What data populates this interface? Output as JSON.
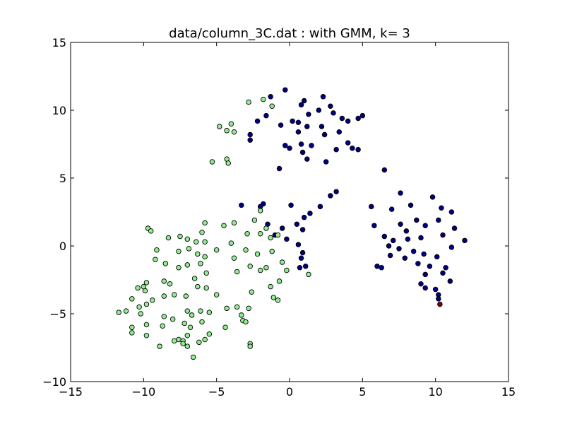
{
  "chart_data": {
    "type": "scatter",
    "title": "data/column_3C.dat : with GMM, k= 3",
    "xlabel": "",
    "ylabel": "",
    "xlim": [
      -15,
      15
    ],
    "ylim": [
      -10,
      15
    ],
    "x_ticks": [
      "−15",
      "−10",
      "−5",
      "0",
      "5",
      "10",
      "15"
    ],
    "y_ticks": [
      "−10",
      "−5",
      "0",
      "5",
      "10",
      "15"
    ],
    "x_tick_values": [
      -15,
      -10,
      -5,
      0,
      5,
      10,
      15
    ],
    "y_tick_values": [
      -10,
      -5,
      0,
      5,
      10,
      15
    ],
    "grid": false,
    "legend": "none",
    "series": [
      {
        "color": "#000080",
        "points": [
          [
            -1.3,
            11.0
          ],
          [
            -0.3,
            11.5
          ],
          [
            0.8,
            10.4
          ],
          [
            1.0,
            10.7
          ],
          [
            2.3,
            11.0
          ],
          [
            2.8,
            10.3
          ],
          [
            3.6,
            9.4
          ],
          [
            0.6,
            9.1
          ],
          [
            0.2,
            9.2
          ],
          [
            1.3,
            9.7
          ],
          [
            2.0,
            10.0
          ],
          [
            3.0,
            9.8
          ],
          [
            4.0,
            9.2
          ],
          [
            5.0,
            9.6
          ],
          [
            4.7,
            9.4
          ],
          [
            -2.2,
            9.2
          ],
          [
            -1.6,
            9.6
          ],
          [
            -0.6,
            8.9
          ],
          [
            0.6,
            8.4
          ],
          [
            1.2,
            8.8
          ],
          [
            2.2,
            8.8
          ],
          [
            3.4,
            8.4
          ],
          [
            -2.7,
            8.2
          ],
          [
            -2.7,
            7.8
          ],
          [
            -0.3,
            7.4
          ],
          [
            0.0,
            7.2
          ],
          [
            0.8,
            7.5
          ],
          [
            1.5,
            7.4
          ],
          [
            2.4,
            8.2
          ],
          [
            3.2,
            7.1
          ],
          [
            4.0,
            7.6
          ],
          [
            4.3,
            7.2
          ],
          [
            4.7,
            7.1
          ],
          [
            0.9,
            6.9
          ],
          [
            1.2,
            6.4
          ],
          [
            2.5,
            6.2
          ],
          [
            -0.7,
            5.7
          ],
          [
            6.5,
            5.6
          ],
          [
            3.2,
            4.0
          ],
          [
            2.8,
            3.7
          ],
          [
            2.1,
            2.9
          ],
          [
            1.4,
            2.4
          ],
          [
            1.0,
            2.1
          ],
          [
            0.1,
            3.0
          ],
          [
            -1.8,
            3.1
          ],
          [
            -2.0,
            2.9
          ],
          [
            -3.3,
            3.0
          ],
          [
            0.5,
            1.6
          ],
          [
            0.9,
            1.2
          ],
          [
            -1.5,
            1.6
          ],
          [
            -0.5,
            1.3
          ],
          [
            -1.0,
            0.8
          ],
          [
            -0.2,
            0.5
          ],
          [
            0.6,
            0.1
          ],
          [
            0.9,
            -0.5
          ],
          [
            0.8,
            -0.9
          ],
          [
            1.1,
            -1.5
          ],
          [
            0.7,
            -1.6
          ],
          [
            5.6,
            2.9
          ],
          [
            7.0,
            2.7
          ],
          [
            7.6,
            3.9
          ],
          [
            8.3,
            3.0
          ],
          [
            9.8,
            3.6
          ],
          [
            10.4,
            2.8
          ],
          [
            11.1,
            2.5
          ],
          [
            8.7,
            1.9
          ],
          [
            5.8,
            1.5
          ],
          [
            7.6,
            1.6
          ],
          [
            8.0,
            1.1
          ],
          [
            9.3,
            1.5
          ],
          [
            10.2,
            1.9
          ],
          [
            11.3,
            1.3
          ],
          [
            6.5,
            0.7
          ],
          [
            7.1,
            0.4
          ],
          [
            8.1,
            0.5
          ],
          [
            9.0,
            0.6
          ],
          [
            10.5,
            0.8
          ],
          [
            11.1,
            -0.1
          ],
          [
            12.0,
            0.4
          ],
          [
            6.8,
            0.0
          ],
          [
            7.5,
            -0.2
          ],
          [
            8.5,
            -0.4
          ],
          [
            9.2,
            -0.6
          ],
          [
            10.1,
            -0.8
          ],
          [
            6.9,
            -0.7
          ],
          [
            7.9,
            -0.9
          ],
          [
            8.8,
            -1.3
          ],
          [
            9.6,
            -1.5
          ],
          [
            10.7,
            -1.6
          ],
          [
            6.0,
            -1.5
          ],
          [
            6.3,
            -1.6
          ],
          [
            9.3,
            -2.1
          ],
          [
            10.5,
            -2.0
          ],
          [
            9.0,
            -2.8
          ],
          [
            9.3,
            -3.1
          ],
          [
            10.0,
            -3.2
          ],
          [
            11.0,
            -2.6
          ],
          [
            10.2,
            -3.6
          ],
          [
            10.2,
            -3.9
          ]
        ]
      },
      {
        "color": "#90ee90",
        "points": [
          [
            -1.8,
            10.8
          ],
          [
            -1.2,
            10.3
          ],
          [
            -2.8,
            10.6
          ],
          [
            -4.8,
            8.8
          ],
          [
            -4.0,
            9.0
          ],
          [
            -4.3,
            8.5
          ],
          [
            -3.8,
            8.4
          ],
          [
            -4.3,
            6.4
          ],
          [
            -4.2,
            6.1
          ],
          [
            -5.3,
            6.2
          ],
          [
            -2.0,
            2.6
          ],
          [
            -2.4,
            1.9
          ],
          [
            -1.6,
            1.3
          ],
          [
            -3.8,
            1.7
          ],
          [
            -4.5,
            1.5
          ],
          [
            -5.8,
            1.7
          ],
          [
            -6.0,
            1.0
          ],
          [
            -9.7,
            1.3
          ],
          [
            -9.5,
            1.1
          ],
          [
            -2.9,
            0.9
          ],
          [
            -0.8,
            0.8
          ],
          [
            -2.0,
            0.9
          ],
          [
            -1.3,
            0.6
          ],
          [
            -4.0,
            0.2
          ],
          [
            -5.8,
            0.3
          ],
          [
            -6.4,
            0.3
          ],
          [
            -7.5,
            0.7
          ],
          [
            -7.0,
            0.5
          ],
          [
            -8.3,
            0.6
          ],
          [
            -3.0,
            -0.3
          ],
          [
            -5.0,
            -0.3
          ],
          [
            -6.9,
            -0.2
          ],
          [
            -7.6,
            -0.4
          ],
          [
            -2.2,
            -0.6
          ],
          [
            -1.2,
            -0.4
          ],
          [
            -3.8,
            -0.9
          ],
          [
            -6.3,
            -0.6
          ],
          [
            -5.8,
            -0.8
          ],
          [
            -9.1,
            -0.3
          ],
          [
            -2.7,
            -1.5
          ],
          [
            -1.6,
            -1.6
          ],
          [
            -0.5,
            -1.2
          ],
          [
            -6.1,
            -1.3
          ],
          [
            -7.0,
            -1.4
          ],
          [
            -8.5,
            -1.3
          ],
          [
            -9.2,
            -1.0
          ],
          [
            -0.2,
            -1.8
          ],
          [
            1.3,
            -2.1
          ],
          [
            -2.0,
            -1.8
          ],
          [
            -3.6,
            -1.9
          ],
          [
            -5.7,
            -2.0
          ],
          [
            -6.5,
            -2.4
          ],
          [
            -7.6,
            -1.6
          ],
          [
            -9.8,
            -2.7
          ],
          [
            -1.3,
            -3.0
          ],
          [
            -0.7,
            -2.6
          ],
          [
            -2.6,
            -3.4
          ],
          [
            -5.7,
            -3.1
          ],
          [
            -6.3,
            -3.0
          ],
          [
            -8.2,
            -2.8
          ],
          [
            -8.6,
            -2.6
          ],
          [
            -9.9,
            -3.3
          ],
          [
            -10.4,
            -3.1
          ],
          [
            -10.0,
            -3.0
          ],
          [
            -5.0,
            -3.6
          ],
          [
            -7.1,
            -3.7
          ],
          [
            -7.9,
            -3.6
          ],
          [
            -8.6,
            -3.7
          ],
          [
            -10.8,
            -3.9
          ],
          [
            -9.8,
            -4.3
          ],
          [
            -9.4,
            -4.0
          ],
          [
            -1.1,
            -3.8
          ],
          [
            -0.8,
            -4.0
          ],
          [
            -3.6,
            -4.5
          ],
          [
            -4.3,
            -4.6
          ],
          [
            -5.5,
            -4.9
          ],
          [
            -6.1,
            -4.8
          ],
          [
            -2.8,
            -4.6
          ],
          [
            -3.3,
            -5.1
          ],
          [
            -10.3,
            -4.5
          ],
          [
            -10.2,
            -5.0
          ],
          [
            -11.2,
            -4.8
          ],
          [
            -11.7,
            -4.9
          ],
          [
            -8.6,
            -5.2
          ],
          [
            -8.0,
            -5.4
          ],
          [
            -6.7,
            -5.1
          ],
          [
            -7.0,
            -4.8
          ],
          [
            -3.2,
            -5.5
          ],
          [
            -3.0,
            -5.6
          ],
          [
            -7.2,
            -5.7
          ],
          [
            -6.0,
            -5.6
          ],
          [
            -8.7,
            -5.9
          ],
          [
            -9.8,
            -5.8
          ],
          [
            -10.8,
            -6.0
          ],
          [
            -10.8,
            -6.4
          ],
          [
            -9.8,
            -6.6
          ],
          [
            -6.8,
            -6.0
          ],
          [
            -4.4,
            -6.0
          ],
          [
            -7.0,
            -6.6
          ],
          [
            -5.5,
            -6.5
          ],
          [
            -7.6,
            -6.9
          ],
          [
            -7.3,
            -7.0
          ],
          [
            -7.9,
            -7.0
          ],
          [
            -6.2,
            -7.1
          ],
          [
            -7.3,
            -7.2
          ],
          [
            -5.8,
            -6.9
          ],
          [
            -7.0,
            -7.4
          ],
          [
            -2.7,
            -7.2
          ],
          [
            -2.7,
            -7.4
          ],
          [
            -8.9,
            -7.4
          ],
          [
            -6.6,
            -8.2
          ]
        ]
      },
      {
        "color": "#800000",
        "points": [
          [
            10.3,
            -4.3
          ]
        ]
      }
    ]
  }
}
